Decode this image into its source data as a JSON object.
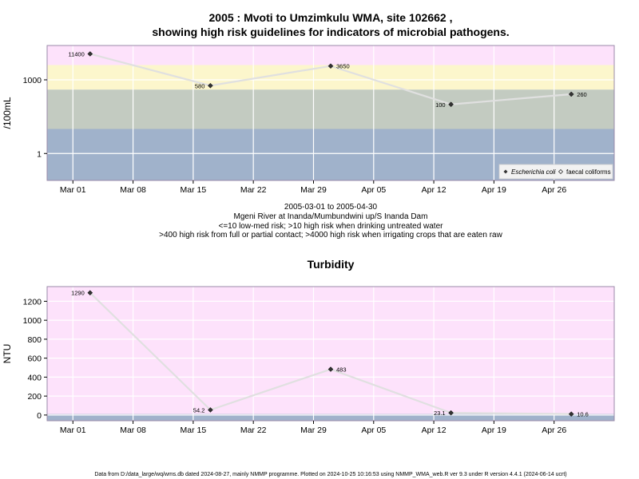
{
  "title_line1": "2005 : Mvoti to Umzimkulu WMA, site 102662 ,",
  "title_line2": "showing high risk guidelines for indicators of microbial pathogens.",
  "subtitle_lines": [
    "2005-03-01 to 2005-04-30",
    "Mgeni River at Inanda/Mumbundwini up/S Inanda Dam",
    "<=10 low-med risk; >10 high risk when drinking untreated water",
    ">400 high risk from full or partial contact; >4000 high risk when irrigating crops that are eaten raw"
  ],
  "footer": "Data from D:/data_large/wq/wms.db dated 2024-08-27, mainly NMMP programme. Plotted on 2024-10-25 10:16:53 using NMMP_WMA_web.R ver 9.3 under R version 4.4.1 (2024-06-14 ucrt)",
  "colors": {
    "band_top": "#fde2fb",
    "band_yellow": "#fcf6cc",
    "band_grey": "#c3cbc1",
    "band_blue": "#a0b2cb",
    "line": "#e0e0e0",
    "marker": "#333333",
    "frame": "#9a8aa8"
  },
  "chart_data": [
    {
      "type": "line",
      "title": "",
      "xlabel": "",
      "ylabel": "/100mL",
      "yscale": "log",
      "ylim": [
        0.08,
        25000
      ],
      "xlim": [
        "2005-02-26",
        "2005-05-03"
      ],
      "x_ticks": [
        "2005-03-01",
        "2005-03-08",
        "2005-03-15",
        "2005-03-22",
        "2005-03-29",
        "2005-04-05",
        "2005-04-12",
        "2005-04-19",
        "2005-04-26"
      ],
      "x_tick_labels": [
        "Mar 01",
        "Mar 08",
        "Mar 15",
        "Mar 22",
        "Mar 29",
        "Apr 05",
        "Apr 12",
        "Apr 19",
        "Apr 26"
      ],
      "y_ticks": [
        1,
        1000
      ],
      "y_tick_labels": [
        "1",
        "1000"
      ],
      "grid": true,
      "risk_bands": [
        {
          "from": 4000,
          "to": 25000,
          "color": "#fde2fb"
        },
        {
          "from": 400,
          "to": 4000,
          "color": "#fcf6cc"
        },
        {
          "from": 10,
          "to": 400,
          "color": "#c3cbc1"
        },
        {
          "from": 0.08,
          "to": 10,
          "color": "#a0b2cb"
        }
      ],
      "legend": {
        "placement": "bottom-right",
        "entries": [
          "Escherichia coli",
          "faecal coliforms"
        ]
      },
      "series": [
        {
          "name": "Escherichia coli",
          "marker": "filled-diamond",
          "x": [
            "2005-03-03",
            "2005-03-17",
            "2005-03-31",
            "2005-04-14",
            "2005-04-28"
          ],
          "y": [
            11400,
            580,
            3650,
            100,
            260
          ],
          "labels": [
            "11400",
            "580",
            "3650",
            "100",
            "260"
          ]
        }
      ]
    },
    {
      "type": "line",
      "title": "Turbidity",
      "xlabel": "",
      "ylabel": "NTU",
      "yscale": "linear",
      "ylim": [
        -60,
        1355
      ],
      "xlim": [
        "2005-02-26",
        "2005-05-03"
      ],
      "x_ticks": [
        "2005-03-01",
        "2005-03-08",
        "2005-03-15",
        "2005-03-22",
        "2005-03-29",
        "2005-04-05",
        "2005-04-12",
        "2005-04-19",
        "2005-04-26"
      ],
      "x_tick_labels": [
        "Mar 01",
        "Mar 08",
        "Mar 15",
        "Mar 22",
        "Mar 29",
        "Apr 05",
        "Apr 12",
        "Apr 19",
        "Apr 26"
      ],
      "y_ticks": [
        0,
        200,
        400,
        600,
        800,
        1000,
        1200
      ],
      "y_tick_labels": [
        "0",
        "200",
        "400",
        "600",
        "800",
        "1000",
        "1200"
      ],
      "grid": true,
      "risk_bands": [
        {
          "from": 10,
          "to": 1355,
          "color": "#fde2fb"
        },
        {
          "from": -60,
          "to": 10,
          "color": "#a0b2cb"
        }
      ],
      "series": [
        {
          "marker": "filled-diamond",
          "x": [
            "2005-03-03",
            "2005-03-17",
            "2005-03-31",
            "2005-04-14",
            "2005-04-28"
          ],
          "y": [
            1290,
            54.2,
            483,
            23.1,
            10.6
          ],
          "labels": [
            "1290",
            "54.2",
            "483",
            "23.1",
            "10.6"
          ]
        }
      ]
    }
  ]
}
